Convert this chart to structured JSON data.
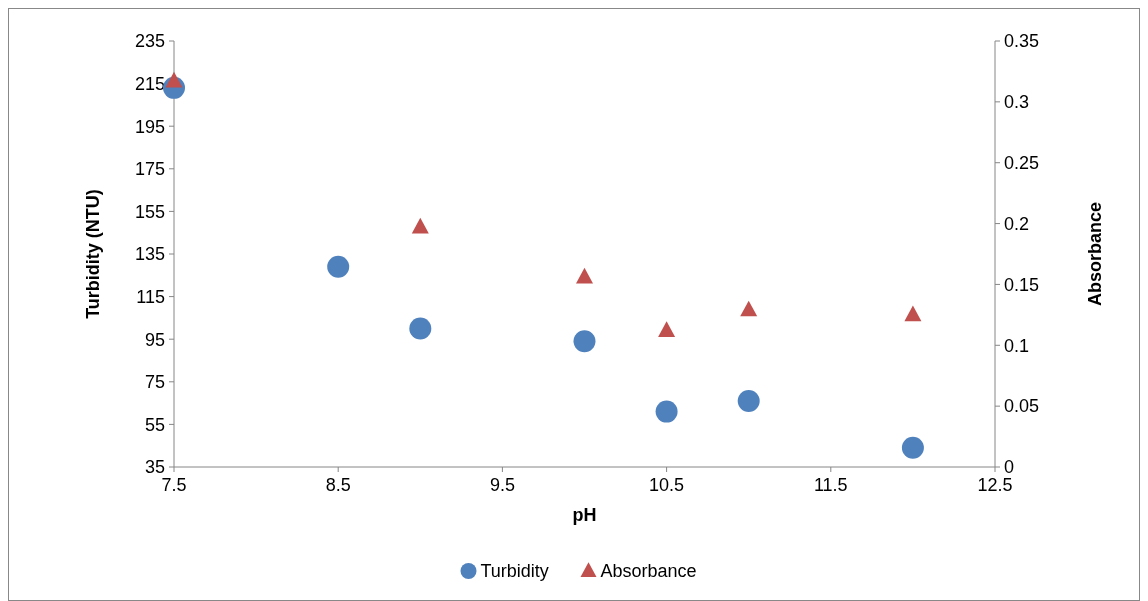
{
  "chart_data": {
    "type": "scatter",
    "xlabel": "pH",
    "ylabel": "Turbidity (NTU)",
    "y2label": "Absorbance",
    "xlim": [
      7.5,
      12.5
    ],
    "xticks": [
      7.5,
      8.5,
      9.5,
      10.5,
      11.5,
      12.5
    ],
    "ylim": [
      35,
      235
    ],
    "yticks": [
      35,
      55,
      75,
      95,
      115,
      135,
      155,
      175,
      195,
      215,
      235
    ],
    "y2lim": [
      0,
      0.35
    ],
    "y2ticks": [
      0,
      0.05,
      0.1,
      0.15,
      0.2,
      0.25,
      0.3,
      0.35
    ],
    "grid": false,
    "legend": "bottom",
    "series": [
      {
        "name": "Turbidity",
        "color": "#4f81bd",
        "marker": "circle",
        "x": [
          7.5,
          8.5,
          9,
          10,
          10.5,
          11,
          12
        ],
        "values": [
          213,
          129,
          100,
          94,
          61,
          66,
          44
        ]
      },
      {
        "name": "Absorbance",
        "color": "#c0504d",
        "marker": "triangle",
        "axis": "y2",
        "x": [
          7.5,
          9,
          10,
          10.5,
          11,
          12
        ],
        "values": [
          0.317,
          0.197,
          0.156,
          0.112,
          0.129,
          0.125
        ]
      }
    ]
  }
}
